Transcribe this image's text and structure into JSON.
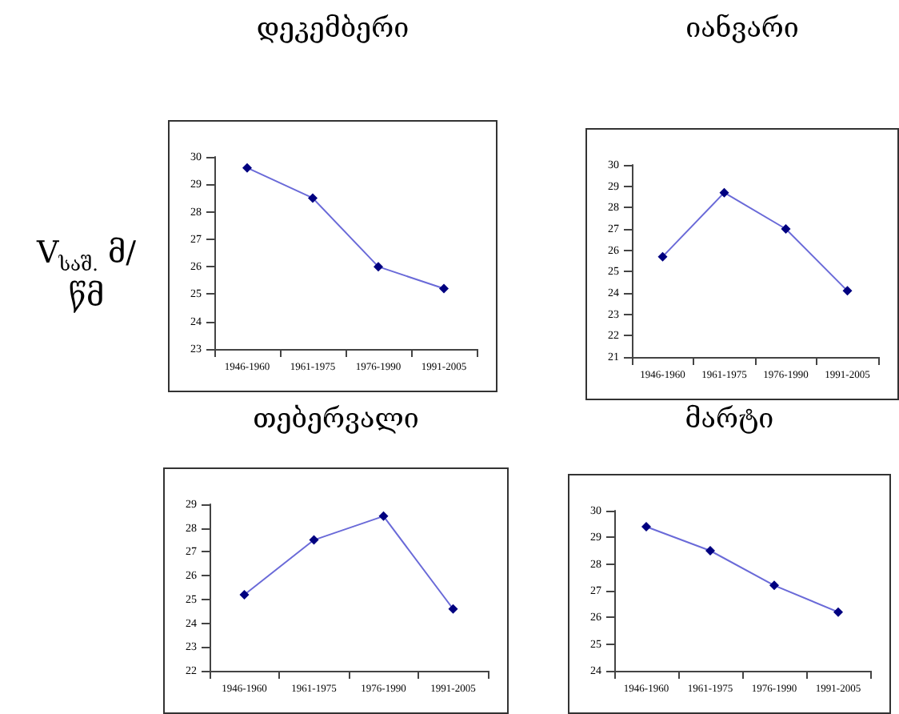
{
  "chart_data": [
    {
      "type": "line",
      "title": "დეკემბერი",
      "ylabel": "V$_{საშ.}$ მ/წმ",
      "categories": [
        "1946-1960",
        "1961-1975",
        "1976-1990",
        "1991-2005"
      ],
      "series": [
        {
          "color": "#6a6ad8",
          "values": [
            29.6,
            28.5,
            26.0,
            25.2
          ]
        }
      ],
      "ylim": [
        23,
        30
      ],
      "yticks": [
        23,
        24,
        25,
        26,
        27,
        28,
        29,
        30
      ],
      "marker": "diamond",
      "grid": false
    },
    {
      "type": "line",
      "title": "იანვარი",
      "categories": [
        "1946-1960",
        "1961-1975",
        "1976-1990",
        "1991-2005"
      ],
      "series": [
        {
          "color": "#6a6ad8",
          "values": [
            25.7,
            28.7,
            27.0,
            24.1
          ]
        }
      ],
      "ylim": [
        21,
        30
      ],
      "yticks": [
        21,
        22,
        23,
        24,
        25,
        26,
        27,
        28,
        29,
        30
      ],
      "marker": "diamond",
      "grid": false
    },
    {
      "type": "line",
      "title": "თებერვალი",
      "categories": [
        "1946-1960",
        "1961-1975",
        "1976-1990",
        "1991-2005"
      ],
      "series": [
        {
          "color": "#6a6ad8",
          "values": [
            25.2,
            27.5,
            28.5,
            24.6
          ]
        }
      ],
      "ylim": [
        22,
        29
      ],
      "yticks": [
        22,
        23,
        24,
        25,
        26,
        27,
        28,
        29
      ],
      "marker": "diamond",
      "grid": false
    },
    {
      "type": "line",
      "title": "მარტი",
      "categories": [
        "1946-1960",
        "1961-1975",
        "1976-1990",
        "1991-2005"
      ],
      "series": [
        {
          "color": "#6a6ad8",
          "values": [
            29.4,
            28.5,
            27.2,
            26.2
          ]
        }
      ],
      "ylim": [
        24,
        30
      ],
      "yticks": [
        24,
        25,
        26,
        27,
        28,
        29,
        30
      ],
      "marker": "diamond",
      "grid": false
    }
  ]
}
